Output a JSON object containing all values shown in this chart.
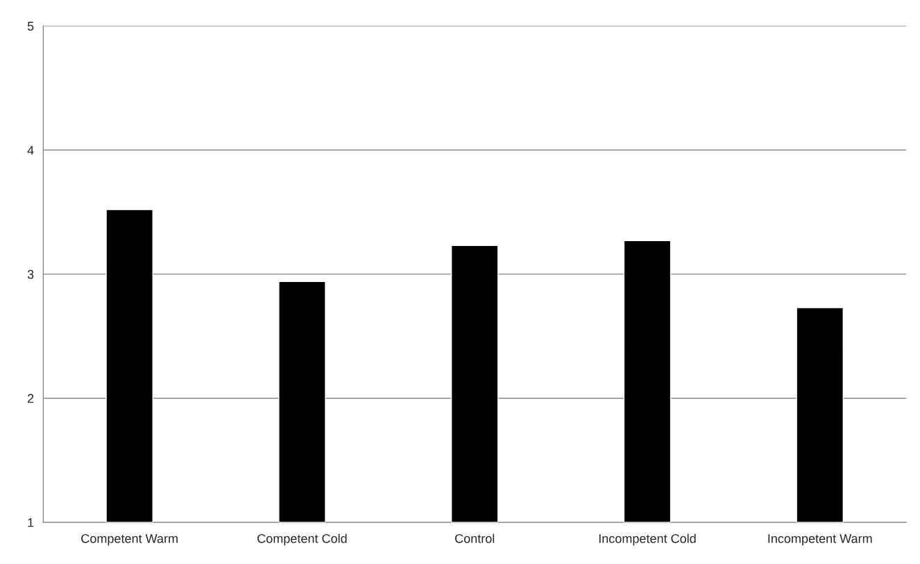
{
  "chart_data": {
    "type": "bar",
    "categories": [
      "Competent Warm",
      "Competent Cold",
      "Control",
      "Incompetent Cold",
      "Incompetent Warm"
    ],
    "values": [
      3.52,
      2.94,
      3.23,
      3.27,
      2.73
    ],
    "color": "#000000",
    "ylim": [
      1,
      5
    ],
    "yticks": [
      1,
      2,
      3,
      4,
      5
    ],
    "grid": "y"
  }
}
